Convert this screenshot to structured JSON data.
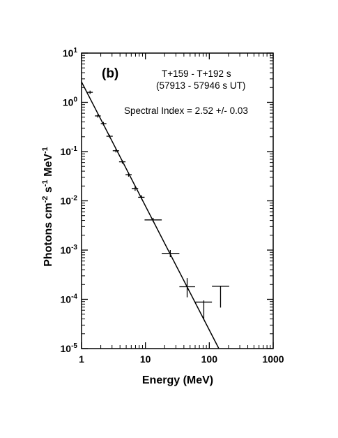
{
  "chart_data": {
    "type": "scatter",
    "panel_label": "(b)",
    "xlabel": "Energy (MeV)",
    "ylabel": {
      "text": "Photons cm",
      "sup1": "-2",
      "mid": " s",
      "sup2": "-1",
      "end": " MeV",
      "sup3": "-1"
    },
    "x_scale": "log",
    "y_scale": "log",
    "xlim": [
      1,
      1000
    ],
    "ylim": [
      1e-05,
      10
    ],
    "x_ticks": [
      {
        "value": 1,
        "label": "1"
      },
      {
        "value": 10,
        "label": "10"
      },
      {
        "value": 100,
        "label": "100"
      },
      {
        "value": 1000,
        "label": "1000"
      }
    ],
    "y_ticks": [
      {
        "value": 10,
        "base": "10",
        "exp": "1"
      },
      {
        "value": 1,
        "base": "10",
        "exp": "0"
      },
      {
        "value": 0.1,
        "base": "10",
        "exp": "-1"
      },
      {
        "value": 0.01,
        "base": "10",
        "exp": "-2"
      },
      {
        "value": 0.001,
        "base": "10",
        "exp": "-3"
      },
      {
        "value": 0.0001,
        "base": "10",
        "exp": "-4"
      },
      {
        "value": 1e-05,
        "base": "10",
        "exp": "-5"
      }
    ],
    "annotations": [
      "T+159 - T+192 s",
      "(57913 - 57946 s UT)",
      "Spectral Index = 2.52 +/- 0.03"
    ],
    "fit_line": {
      "index": 2.52,
      "x": [
        1,
        140
      ],
      "y": [
        2.6,
        1.02e-05
      ]
    },
    "points": [
      {
        "x": 1.36,
        "y": 1.6,
        "xlo": 1.22,
        "xhi": 1.5,
        "ylo": 1.48,
        "yhi": 1.73
      },
      {
        "x": 1.8,
        "y": 0.53,
        "xlo": 1.62,
        "xhi": 2.0,
        "ylo": 0.49,
        "yhi": 0.57
      },
      {
        "x": 2.2,
        "y": 0.37,
        "xlo": 2.0,
        "xhi": 2.45,
        "ylo": 0.34,
        "yhi": 0.4
      },
      {
        "x": 2.75,
        "y": 0.205,
        "xlo": 2.45,
        "xhi": 3.08,
        "ylo": 0.19,
        "yhi": 0.22
      },
      {
        "x": 3.45,
        "y": 0.104,
        "xlo": 3.08,
        "xhi": 3.87,
        "ylo": 0.096,
        "yhi": 0.112
      },
      {
        "x": 4.35,
        "y": 0.062,
        "xlo": 3.87,
        "xhi": 4.88,
        "ylo": 0.057,
        "yhi": 0.067
      },
      {
        "x": 5.45,
        "y": 0.034,
        "xlo": 4.88,
        "xhi": 6.1,
        "ylo": 0.031,
        "yhi": 0.037
      },
      {
        "x": 6.9,
        "y": 0.0178,
        "xlo": 6.1,
        "xhi": 7.7,
        "ylo": 0.016,
        "yhi": 0.0196
      },
      {
        "x": 8.7,
        "y": 0.0118,
        "xlo": 7.7,
        "xhi": 9.7,
        "ylo": 0.0107,
        "yhi": 0.013
      },
      {
        "x": 13.2,
        "y": 0.0041,
        "xlo": 9.7,
        "xhi": 18,
        "ylo": 0.0037,
        "yhi": 0.0045
      },
      {
        "x": 24.5,
        "y": 0.00086,
        "xlo": 18,
        "xhi": 34,
        "ylo": 0.00072,
        "yhi": 0.001
      },
      {
        "x": 45,
        "y": 0.00018,
        "xlo": 34,
        "xhi": 60,
        "ylo": 0.00011,
        "yhi": 0.00027
      },
      {
        "x": 82,
        "y": 8.8e-05,
        "xlo": 60,
        "xhi": 110,
        "ylo": 3.9e-05,
        "yhi": 9.5e-05
      },
      {
        "x": 150,
        "y": 0.000185,
        "xlo": 110,
        "xhi": 205,
        "ylo": 6.8e-05,
        "yhi": 0.000185
      }
    ]
  }
}
